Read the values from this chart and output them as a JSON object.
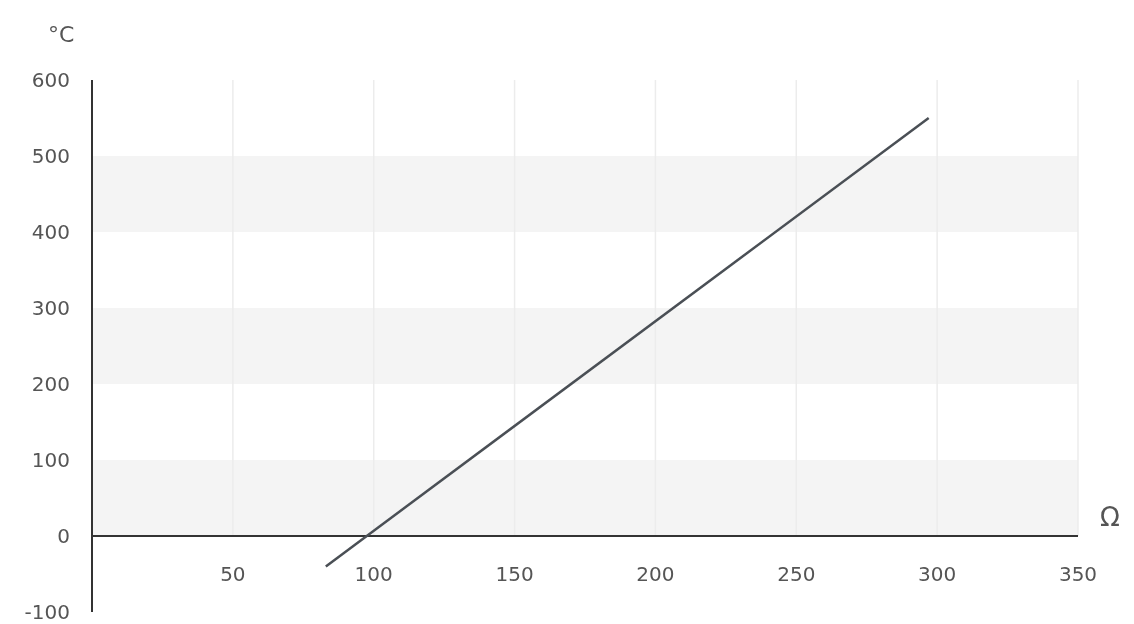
{
  "chart_data": {
    "type": "line",
    "xlabel": "Ω",
    "ylabel": "°C",
    "series": [
      {
        "color": "#4a4f55",
        "x": [
          83,
          297
        ],
        "values": [
          -40,
          550
        ]
      }
    ],
    "xlim": [
      0,
      350
    ],
    "xticks": [
      50,
      100,
      150,
      200,
      250,
      300,
      350
    ],
    "ylim": [
      -100,
      600
    ],
    "yticks": [
      -100,
      0,
      100,
      200,
      300,
      400,
      500,
      600
    ],
    "grid": "x",
    "bands": [
      {
        "axis": "y",
        "from": 0,
        "to": 100,
        "color": "#f4f4f4"
      },
      {
        "axis": "y",
        "from": 200,
        "to": 300,
        "color": "#f4f4f4"
      },
      {
        "axis": "y",
        "from": 400,
        "to": 500,
        "color": "#f4f4f4"
      }
    ]
  }
}
